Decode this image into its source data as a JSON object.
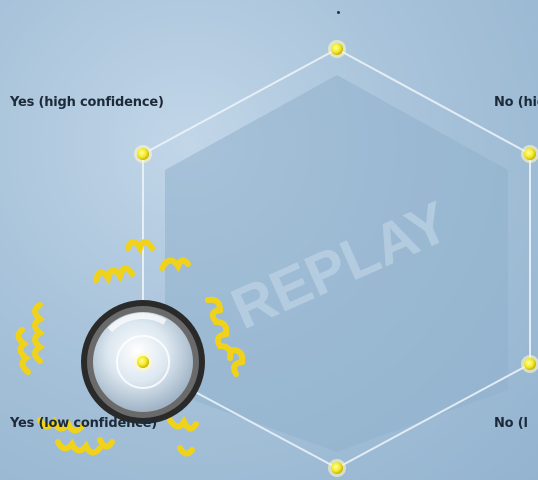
{
  "labels": {
    "yes_high": "Yes (high confidence)",
    "no_high": "No (high",
    "yes_low": "Yes (low confidence)",
    "no_low": "No (l"
  },
  "watermark": "REPLAY",
  "colors": {
    "background": "#a8c3da",
    "hexagon_fill": "#8fb0cc",
    "node": "#f2ea2a",
    "coil": "#f0d21a",
    "ring": "#2a2a2a"
  },
  "icons": {
    "selector": "spinning-disc-icon",
    "coil": "spring-coil-icon"
  }
}
